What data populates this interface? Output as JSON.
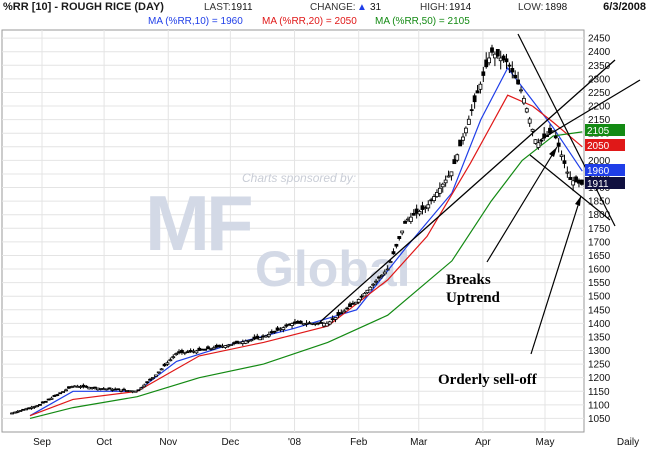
{
  "header": {
    "symbol": "%RR [10] - ROUGH RICE (DAY)",
    "last_label": "LAST:",
    "last_value": "1911",
    "change_label": "CHANGE:",
    "change_value": "31",
    "change_direction": "up",
    "high_label": "HIGH:",
    "high_value": "1914",
    "low_label": "LOW:",
    "low_value": "1898",
    "date": "6/3/2008"
  },
  "ma_legend": [
    {
      "text": "MA (%RR,10) = 1960",
      "color": "#1f3ee8"
    },
    {
      "text": "MA (%RR,20) = 2050",
      "color": "#e01818"
    },
    {
      "text": "MA (%RR,50) = 2105",
      "color": "#138a13"
    }
  ],
  "watermark": {
    "sponsor_text": "Charts sponsored by:",
    "logo_text": "MF Global"
  },
  "annotations": [
    {
      "text": "Breaks",
      "line": 1
    },
    {
      "text": "Uptrend",
      "line": 2
    },
    {
      "text": "Orderly sell-off",
      "line": 3
    }
  ],
  "chart_data": {
    "type": "line",
    "title": "%RR [10] - ROUGH RICE (DAY)",
    "xlabel": "",
    "ylabel": "",
    "x_tick_labels": [
      "Sep",
      "Oct",
      "Nov",
      "Dec",
      "'08",
      "Feb",
      "Mar",
      "Apr",
      "May",
      "Daily"
    ],
    "y_ticks": [
      1050,
      1100,
      1150,
      1200,
      1250,
      1300,
      1350,
      1400,
      1450,
      1500,
      1550,
      1600,
      1650,
      1700,
      1750,
      1800,
      1850,
      1900,
      1950,
      2000,
      2050,
      2100,
      2150,
      2200,
      2250,
      2300,
      2350,
      2400,
      2450
    ],
    "ylim": [
      1000,
      2480
    ],
    "grid": true,
    "y_axis_side": "right",
    "series": [
      {
        "name": "%RR",
        "color": "#000000",
        "points": [
          [
            "Sep 1",
            1070
          ],
          [
            "Sep 15",
            1100
          ],
          [
            "Oct 1",
            1170
          ],
          [
            "Oct 15",
            1160
          ],
          [
            "Nov 1",
            1150
          ],
          [
            "Nov 10",
            1210
          ],
          [
            "Nov 20",
            1290
          ],
          [
            "Dec 1",
            1300
          ],
          [
            "Dec 15",
            1320
          ],
          [
            "Jan 1",
            1350
          ],
          [
            "Jan 15",
            1400
          ],
          [
            "Feb 1",
            1400
          ],
          [
            "Feb 15",
            1480
          ],
          [
            "Mar 1",
            1600
          ],
          [
            "Mar 10",
            1780
          ],
          [
            "Mar 20",
            1830
          ],
          [
            "Apr 1",
            1960
          ],
          [
            "Apr 10",
            2170
          ],
          [
            "Apr 20",
            2400
          ],
          [
            "Apr 28",
            2360
          ],
          [
            "May 5",
            2250
          ],
          [
            "May 12",
            2060
          ],
          [
            "May 20",
            2110
          ],
          [
            "May 28",
            1930
          ],
          [
            "Jun 3",
            1911
          ]
        ]
      },
      {
        "name": "MA (%RR,10)",
        "color": "#1f3ee8",
        "last": 1960,
        "points": [
          [
            "Sep 10",
            1060
          ],
          [
            "Oct 1",
            1150
          ],
          [
            "Nov 1",
            1150
          ],
          [
            "Nov 20",
            1260
          ],
          [
            "Dec 15",
            1320
          ],
          [
            "Jan 15",
            1380
          ],
          [
            "Feb 15",
            1450
          ],
          [
            "Mar 10",
            1680
          ],
          [
            "Apr 1",
            1880
          ],
          [
            "Apr 15",
            2150
          ],
          [
            "Apr 28",
            2340
          ],
          [
            "May 10",
            2220
          ],
          [
            "May 20",
            2120
          ],
          [
            "Jun 3",
            1960
          ]
        ]
      },
      {
        "name": "MA (%RR,20)",
        "color": "#e01818",
        "last": 2050,
        "points": [
          [
            "Sep 10",
            1060
          ],
          [
            "Oct 1",
            1120
          ],
          [
            "Nov 1",
            1150
          ],
          [
            "Dec 1",
            1280
          ],
          [
            "Jan 1",
            1330
          ],
          [
            "Feb 1",
            1390
          ],
          [
            "Mar 1",
            1560
          ],
          [
            "Mar 20",
            1720
          ],
          [
            "Apr 10",
            1990
          ],
          [
            "Apr 28",
            2240
          ],
          [
            "May 10",
            2200
          ],
          [
            "May 20",
            2140
          ],
          [
            "Jun 3",
            2050
          ]
        ]
      },
      {
        "name": "MA (%RR,50)",
        "color": "#138a13",
        "last": 2105,
        "points": [
          [
            "Sep 10",
            1050
          ],
          [
            "Oct 1",
            1090
          ],
          [
            "Nov 1",
            1130
          ],
          [
            "Dec 1",
            1200
          ],
          [
            "Jan 1",
            1250
          ],
          [
            "Feb 1",
            1330
          ],
          [
            "Mar 1",
            1430
          ],
          [
            "Apr 1",
            1630
          ],
          [
            "Apr 20",
            1850
          ],
          [
            "May 5",
            2000
          ],
          [
            "May 20",
            2090
          ],
          [
            "Jun 3",
            2105
          ]
        ]
      }
    ],
    "price_labels": [
      {
        "value": "2105",
        "color": "#138a13"
      },
      {
        "value": "2050",
        "color": "#e01818"
      },
      {
        "value": "1960",
        "color": "#1f3ee8"
      },
      {
        "value": "1911",
        "color": "#101040"
      }
    ]
  }
}
